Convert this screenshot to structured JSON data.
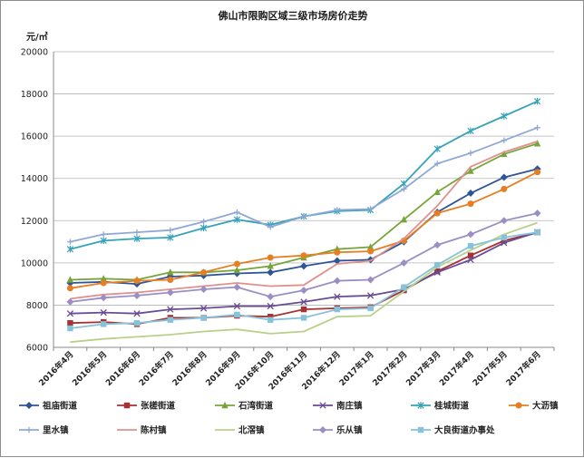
{
  "chart_data": {
    "type": "line",
    "title": "佛山市限购区域三级市场房价走势",
    "ylabel": "元/㎡",
    "xlabel": "",
    "ylim": [
      6000,
      20000
    ],
    "yticks": [
      6000,
      8000,
      10000,
      12000,
      14000,
      16000,
      18000,
      20000
    ],
    "grid": true,
    "legend_position": "bottom",
    "categories": [
      "2016年4月",
      "2016年5月",
      "2016年6月",
      "2016年7月",
      "2016年8月",
      "2016年9月",
      "2016年10月",
      "2016年11月",
      "2016年12月",
      "2017年1月",
      "2017年2月",
      "2017年3月",
      "2017年4月",
      "2017年5月",
      "2017年6月"
    ],
    "series": [
      {
        "name": "祖庙街道",
        "color": "#2f5597",
        "marker": "diamond",
        "values": [
          9050,
          9100,
          9000,
          9350,
          9400,
          9500,
          9550,
          9850,
          10100,
          10150,
          11000,
          12400,
          13300,
          14050,
          14450
        ]
      },
      {
        "name": "张槎街道",
        "color": "#a83232",
        "marker": "square",
        "values": [
          7150,
          7200,
          7100,
          7400,
          7400,
          7500,
          7450,
          7800,
          7850,
          7900,
          8700,
          9600,
          10350,
          11050,
          11450
        ]
      },
      {
        "name": "石湾街道",
        "color": "#77a43a",
        "marker": "triangle",
        "values": [
          9200,
          9250,
          9200,
          9550,
          9550,
          9650,
          9850,
          10250,
          10650,
          10750,
          12050,
          13350,
          14350,
          15150,
          15650
        ]
      },
      {
        "name": "南庄镇",
        "color": "#6a4c93",
        "marker": "x",
        "values": [
          7600,
          7650,
          7600,
          7800,
          7850,
          7950,
          7950,
          8150,
          8400,
          8450,
          8750,
          9550,
          10150,
          10950,
          11450
        ]
      },
      {
        "name": "桂城街道",
        "color": "#36a3b8",
        "marker": "star",
        "values": [
          10650,
          11050,
          11150,
          11200,
          11650,
          12050,
          11800,
          12200,
          12450,
          12500,
          13750,
          15400,
          16250,
          16950,
          17650
        ]
      },
      {
        "name": "大沥镇",
        "color": "#e67e22",
        "marker": "circle",
        "values": [
          8800,
          9050,
          9150,
          9200,
          9550,
          9950,
          10250,
          10350,
          10500,
          10550,
          11050,
          12350,
          12800,
          13500,
          14300
        ]
      },
      {
        "name": "里水镇",
        "color": "#8fa8d6",
        "marker": "plus",
        "values": [
          11000,
          11350,
          11450,
          11550,
          11950,
          12400,
          11700,
          12200,
          12500,
          12550,
          13500,
          14700,
          15200,
          15800,
          16400
        ]
      },
      {
        "name": "陈村镇",
        "color": "#e0908d",
        "marker": "none",
        "values": [
          8300,
          8500,
          8600,
          8750,
          8900,
          9050,
          8900,
          8950,
          9950,
          10100,
          11150,
          12700,
          14550,
          15250,
          15750
        ]
      },
      {
        "name": "北滘镇",
        "color": "#b9d08a",
        "marker": "none",
        "values": [
          6250,
          6400,
          6500,
          6600,
          6750,
          6850,
          6650,
          6750,
          7450,
          7500,
          8650,
          9800,
          10600,
          11350,
          11900
        ]
      },
      {
        "name": "乐从镇",
        "color": "#9b8ec4",
        "marker": "diamond",
        "values": [
          8150,
          8350,
          8450,
          8600,
          8750,
          8850,
          8400,
          8700,
          9150,
          9200,
          10000,
          10850,
          11350,
          12000,
          12350
        ]
      },
      {
        "name": "大良街道办事处",
        "color": "#86c3db",
        "marker": "square",
        "values": [
          6900,
          7100,
          7150,
          7300,
          7400,
          7550,
          7300,
          7400,
          7800,
          7850,
          8850,
          9900,
          10800,
          11200,
          11450
        ]
      }
    ]
  }
}
